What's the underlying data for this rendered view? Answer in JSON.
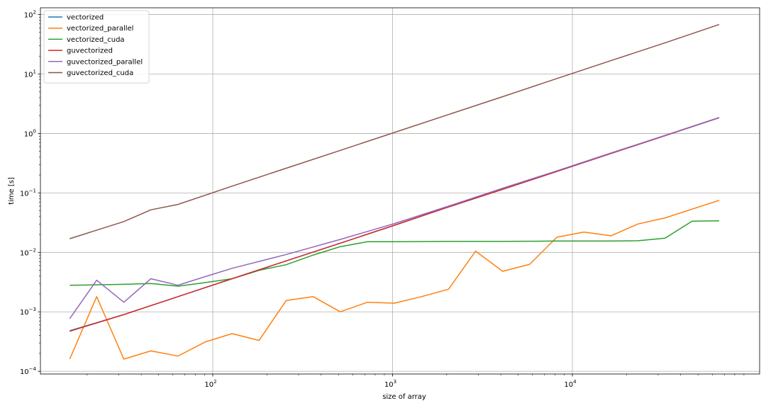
{
  "chart_data": {
    "type": "line",
    "title": "",
    "xlabel": "size of array",
    "ylabel": "time [s]",
    "xscale": "log",
    "yscale": "log",
    "xlim": [
      11,
      110000
    ],
    "ylim": [
      9e-05,
      130
    ],
    "grid": true,
    "legend_position": "top-left",
    "x_ticks": [
      {
        "value": 100,
        "base": "10",
        "exp": "2"
      },
      {
        "value": 1000,
        "base": "10",
        "exp": "3"
      },
      {
        "value": 10000,
        "base": "10",
        "exp": "4"
      }
    ],
    "y_ticks": [
      {
        "value": 0.0001,
        "base": "10",
        "exp": "−4"
      },
      {
        "value": 0.001,
        "base": "10",
        "exp": "−3"
      },
      {
        "value": 0.01,
        "base": "10",
        "exp": "−2"
      },
      {
        "value": 0.1,
        "base": "10",
        "exp": "−1"
      },
      {
        "value": 1,
        "base": "10",
        "exp": "0"
      },
      {
        "value": 10,
        "base": "10",
        "exp": "1"
      },
      {
        "value": 100,
        "base": "10",
        "exp": "2"
      }
    ],
    "series": [
      {
        "name": "vectorized",
        "color": "#1f77b4",
        "x": [
          16,
          32,
          64,
          128,
          256,
          512,
          1024,
          2048,
          4096,
          8192,
          16384,
          32768,
          65536
        ],
        "y": [
          0.00048,
          0.0009,
          0.0018,
          0.0036,
          0.0072,
          0.0143,
          0.0286,
          0.058,
          0.115,
          0.23,
          0.46,
          0.92,
          1.84
        ]
      },
      {
        "name": "vectorized_parallel",
        "color": "#ff7f0e",
        "x": [
          16,
          22.6,
          32,
          45.3,
          64,
          90.5,
          128,
          181,
          256,
          362,
          512,
          724,
          1024,
          1448,
          2048,
          2896,
          4096,
          5793,
          8192,
          11585,
          16384,
          23170,
          32768,
          65536
        ],
        "y": [
          0.00016,
          0.0018,
          0.00016,
          0.00022,
          0.00018,
          0.00031,
          0.00043,
          0.00033,
          0.00155,
          0.0018,
          0.001,
          0.00145,
          0.0014,
          0.0018,
          0.0024,
          0.0105,
          0.0048,
          0.0063,
          0.018,
          0.022,
          0.019,
          0.03,
          0.038,
          0.075
        ]
      },
      {
        "name": "vectorized_cuda",
        "color": "#2ca02c",
        "x": [
          16,
          32,
          45.3,
          64,
          90.5,
          128,
          181,
          256,
          362,
          512,
          724,
          1024,
          2048,
          4096,
          8192,
          16384,
          23170,
          32768,
          46341,
          65536
        ],
        "y": [
          0.0028,
          0.0029,
          0.003,
          0.0027,
          0.0031,
          0.0036,
          0.005,
          0.0062,
          0.009,
          0.0125,
          0.0151,
          0.0151,
          0.0153,
          0.0153,
          0.0155,
          0.0155,
          0.0157,
          0.0173,
          0.0335,
          0.034
        ]
      },
      {
        "name": "guvectorized",
        "color": "#d62728",
        "x": [
          16,
          32,
          64,
          128,
          256,
          512,
          1024,
          2048,
          4096,
          8192,
          16384,
          32768,
          65536
        ],
        "y": [
          0.00047,
          0.0009,
          0.0018,
          0.0036,
          0.0072,
          0.0143,
          0.0286,
          0.058,
          0.115,
          0.23,
          0.46,
          0.92,
          1.84
        ]
      },
      {
        "name": "guvectorized_parallel",
        "color": "#9467bd",
        "x": [
          16,
          22.6,
          32,
          45.3,
          64,
          90.5,
          128,
          256,
          512,
          1024,
          2048,
          4096,
          8192,
          16384,
          32768,
          65536
        ],
        "y": [
          0.00077,
          0.0034,
          0.00145,
          0.0036,
          0.0028,
          0.0039,
          0.0054,
          0.0092,
          0.0165,
          0.0305,
          0.06,
          0.12,
          0.235,
          0.47,
          0.93,
          1.86
        ]
      },
      {
        "name": "guvectorized_cuda",
        "color": "#8c564b",
        "x": [
          16,
          32,
          45.3,
          64,
          128,
          256,
          512,
          1024,
          2048,
          4096,
          8192,
          16384,
          32768,
          65536
        ],
        "y": [
          0.017,
          0.033,
          0.052,
          0.064,
          0.13,
          0.26,
          0.52,
          1.04,
          2.08,
          4.16,
          8.4,
          16.8,
          33.5,
          68
        ]
      }
    ]
  }
}
